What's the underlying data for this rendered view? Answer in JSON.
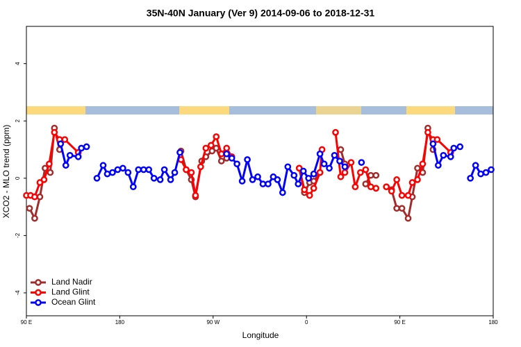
{
  "chart_data": {
    "type": "line",
    "title": "35N-40N January (Ver 9)   2014-09-06 to 2018-12-31",
    "x_label": "Longitude",
    "y_label": "XCO2 - MLO trend (ppm)",
    "xlim": [
      90,
      540
    ],
    "ylim": [
      -4.8,
      5.3
    ],
    "xticks": [
      {
        "value": 90,
        "label": "90 E"
      },
      180,
      {
        "value": 270,
        "label": "90 W"
      },
      {
        "value": 360,
        "label": "0"
      },
      {
        "value": 450,
        "label": "90 E"
      },
      {
        "value": 540,
        "label": "180"
      }
    ],
    "yticks": [
      -4,
      -2,
      0,
      2,
      4
    ],
    "legend": "bottom-left",
    "series": [
      {
        "name": "Land Nadir",
        "color": "#a52a2a",
        "x": [
          93,
          98,
          103,
          108,
          113,
          117,
          122,
          null,
          239,
          244,
          249,
          253,
          259,
          263,
          269,
          273,
          278,
          283,
          null,
          353,
          358,
          363,
          367,
          373,
          null,
          393,
          397,
          null,
          417,
          422,
          427,
          null,
          437,
          442,
          447,
          452,
          458,
          462,
          467,
          472,
          477,
          482
        ],
        "values": [
          -1.05,
          -1.4,
          -0.65,
          0.35,
          0.2,
          1.75,
          1.0,
          null,
          0.95,
          0.3,
          -0.05,
          -0.65,
          0.6,
          0.75,
          0.95,
          1.05,
          0.6,
          0.7,
          null,
          0.35,
          -0.5,
          -0.15,
          -0.1,
          0.2,
          null,
          1.0,
          0.5,
          null,
          -0.2,
          0.1,
          0.1,
          null,
          -0.3,
          -0.4,
          -1.05,
          -1.05,
          -1.4,
          -0.65,
          0.35,
          0.2,
          1.75,
          1.0
        ]
      },
      {
        "name": "Land Glint",
        "color": "#ff0000",
        "x": [
          90,
          94,
          98,
          103,
          107,
          112,
          117,
          122,
          127,
          140,
          null,
          239,
          244,
          249,
          253,
          258,
          263,
          268,
          273,
          278,
          283,
          288,
          null,
          353,
          358,
          363,
          367,
          373,
          375,
          null,
          388,
          393,
          397,
          403,
          407,
          412,
          417,
          422,
          427,
          null,
          437,
          442,
          447,
          452,
          458,
          462,
          467,
          472,
          477,
          482,
          486,
          499
        ],
        "values": [
          -0.6,
          -0.6,
          -0.65,
          -0.15,
          -0.05,
          0.5,
          1.6,
          1.35,
          1.35,
          0.9,
          null,
          0.65,
          0.3,
          0.2,
          -0.6,
          0.4,
          1.05,
          1.15,
          1.45,
          0.85,
          1.05,
          0.75,
          null,
          0.35,
          -0.4,
          -0.6,
          -0.35,
          0.2,
          1.0,
          null,
          1.6,
          0.05,
          0.2,
          0.55,
          -0.3,
          0.2,
          0.3,
          -0.3,
          -0.35,
          null,
          -0.3,
          -0.45,
          -0.05,
          -0.6,
          -0.6,
          -0.15,
          -0.05,
          0.5,
          1.6,
          1.35,
          1.35,
          0.9
        ]
      },
      {
        "name": "Ocean Glint",
        "color": "#0000ff",
        "x": [
          123,
          128,
          132,
          140,
          143,
          148,
          null,
          158,
          164,
          168,
          173,
          178,
          183,
          188,
          193,
          198,
          203,
          208,
          213,
          219,
          223,
          229,
          233,
          238,
          null,
          283,
          288,
          293,
          298,
          303,
          308,
          313,
          318,
          323,
          328,
          332,
          337,
          342,
          348,
          352,
          357,
          362,
          367,
          373,
          377,
          382,
          387,
          392,
          397,
          null,
          413,
          null,
          482,
          487,
          492,
          499,
          502,
          508,
          null,
          518,
          523,
          528,
          533,
          538
        ],
        "values": [
          1.2,
          0.45,
          0.8,
          0.75,
          1.05,
          1.1,
          null,
          0,
          0.45,
          0.15,
          0.2,
          0.3,
          0.35,
          0.2,
          -0.3,
          0.3,
          0.3,
          0.3,
          0,
          -0.05,
          0.3,
          -0.05,
          0.2,
          0.9,
          null,
          0.85,
          0.7,
          0.5,
          -0.1,
          0.65,
          -0.05,
          0.05,
          -0.2,
          -0.2,
          0.05,
          -0.05,
          -0.5,
          0.4,
          0.1,
          -0.2,
          0.25,
          0,
          0.15,
          0.85,
          0.5,
          0.35,
          0.8,
          0.6,
          0.4,
          null,
          0.55,
          null,
          1.2,
          0.45,
          0.8,
          0.75,
          1.05,
          1.1,
          null,
          0,
          0.45,
          0.15,
          0.2,
          0.3
        ]
      }
    ]
  }
}
